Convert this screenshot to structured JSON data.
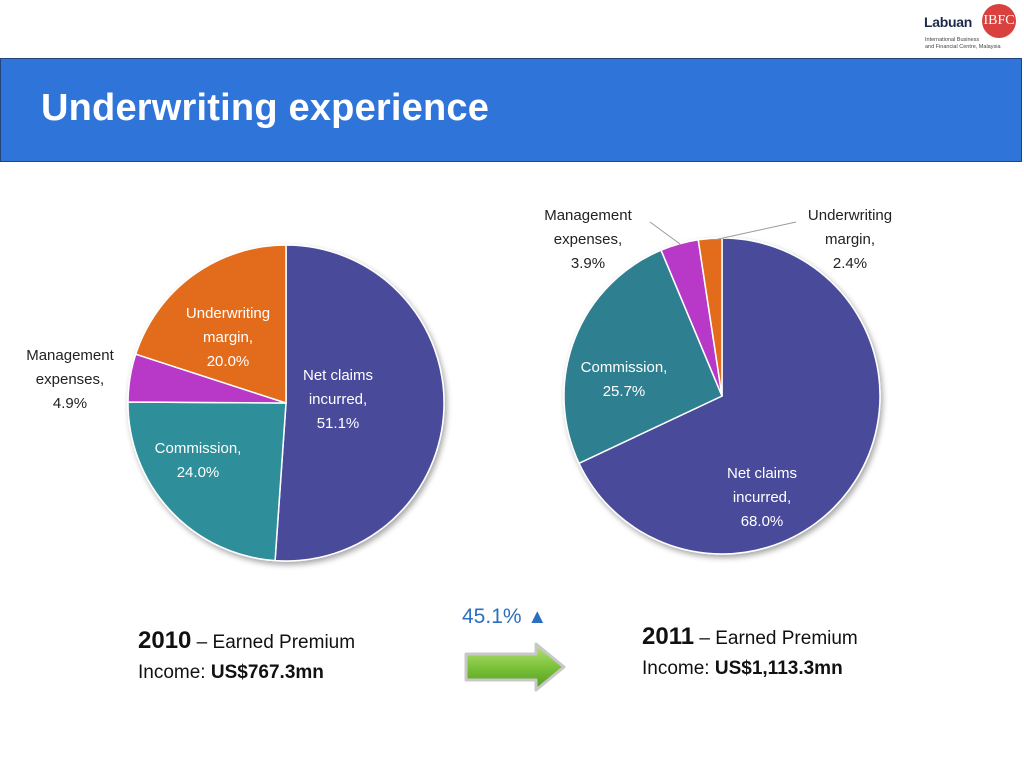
{
  "logo": {
    "word": "Labuan",
    "badge": "IBFC",
    "line1": "International Business",
    "line2": "and Financial Centre, Malaysia"
  },
  "slide": {
    "title": "Underwriting experience"
  },
  "chart_data": [
    {
      "type": "pie",
      "title": "",
      "slices": [
        {
          "label": [
            "Net claims",
            "incurred,",
            "51.1%"
          ],
          "value": 51.1,
          "color": "#4a4c9a"
        },
        {
          "label": [
            "Commission,",
            "24.0%"
          ],
          "value": 24.0,
          "color": "#2f8f9b"
        },
        {
          "label": [
            "Management",
            "expenses,",
            "4.9%"
          ],
          "value": 4.9,
          "color": "#b839c8"
        },
        {
          "label": [
            "Underwriting",
            "margin,",
            "20.0%"
          ],
          "value": 20.0,
          "color": "#e36c1e"
        }
      ]
    },
    {
      "type": "pie",
      "title": "",
      "slices": [
        {
          "label": [
            "Net claims",
            "incurred,",
            "68.0%"
          ],
          "value": 68.0,
          "color": "#4a4c9a"
        },
        {
          "label": [
            "Commission,",
            "25.7%"
          ],
          "value": 25.7,
          "color": "#2f7f8f"
        },
        {
          "label": [
            "Management",
            "expenses,",
            "3.9%"
          ],
          "value": 3.9,
          "color": "#b839c8"
        },
        {
          "label": [
            "Underwriting",
            "margin,",
            "2.4%"
          ],
          "value": 2.4,
          "color": "#e36c1e"
        }
      ]
    }
  ],
  "captions": {
    "left": {
      "year": "2010",
      "text1": " – Earned Premium",
      "text2": "Income: ",
      "amount": "US$767.3mn"
    },
    "right": {
      "year": "2011",
      "text1": " – Earned Premium",
      "text2": "Income: ",
      "amount": "US$1,113.3mn"
    }
  },
  "growth": {
    "value": "45.1%",
    "symbol": "▲"
  }
}
